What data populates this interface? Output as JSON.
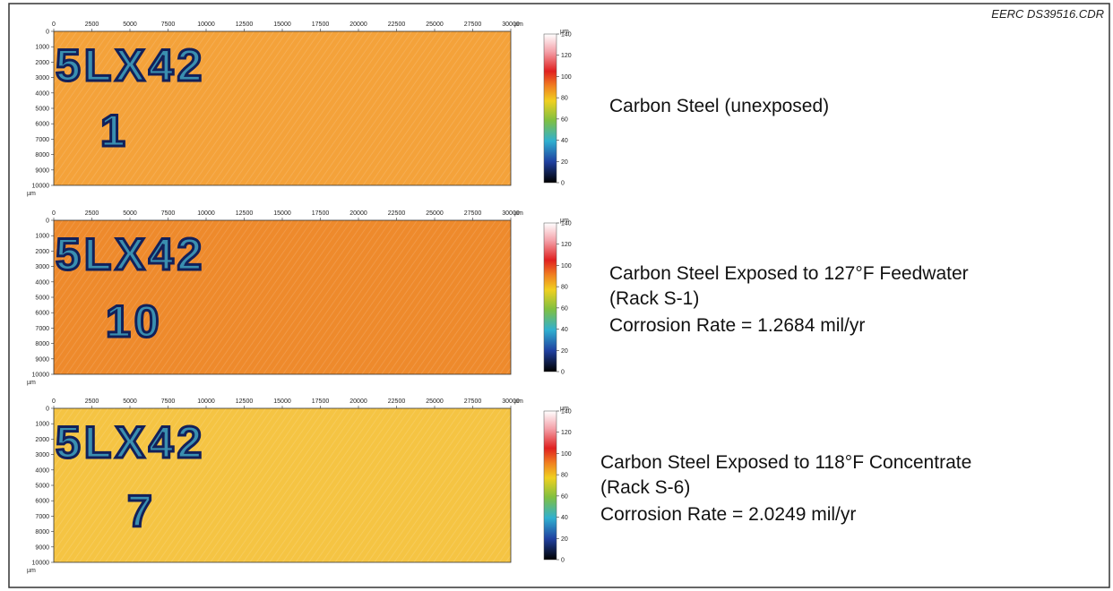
{
  "header": {
    "file_id": "EERC DS39516.CDR"
  },
  "axes": {
    "unit": "µm",
    "x_ticks": [
      0,
      2500,
      5000,
      7500,
      10000,
      12500,
      15000,
      17500,
      20000,
      22500,
      25000,
      27500,
      30000
    ],
    "y_ticks": [
      0,
      1000,
      2000,
      3000,
      4000,
      5000,
      6000,
      7000,
      8000,
      9000,
      10000
    ],
    "colorbar_ticks": [
      140,
      120,
      100,
      80,
      60,
      40,
      20,
      0
    ]
  },
  "panels": [
    {
      "stamp": [
        "5LX42",
        "1"
      ],
      "caption": [
        "Carbon Steel (unexposed)"
      ]
    },
    {
      "stamp": [
        "5LX42",
        "10"
      ],
      "caption": [
        "Carbon Steel Exposed to 127°F Feedwater",
        "(Rack S-1)",
        "Corrosion Rate = 1.2684 mil/yr"
      ]
    },
    {
      "stamp": [
        "5LX42",
        "7"
      ],
      "caption": [
        "Carbon Steel Exposed to 118°F Concentrate",
        "(Rack S-6)",
        "Corrosion Rate = 2.0249 mil/yr"
      ]
    }
  ]
}
